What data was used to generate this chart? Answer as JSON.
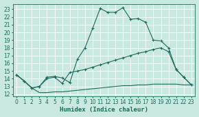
{
  "xlabel": "Humidex (Indice chaleur)",
  "bg_color": "#c8e8e0",
  "grid_color": "#b0d8d0",
  "line_color": "#1a6b5a",
  "xlim": [
    -0.5,
    23.5
  ],
  "ylim": [
    11.7,
    23.7
  ],
  "xticks": [
    0,
    1,
    2,
    3,
    4,
    5,
    6,
    7,
    8,
    9,
    10,
    11,
    12,
    13,
    14,
    15,
    16,
    17,
    18,
    19,
    20,
    21,
    22,
    23
  ],
  "yticks": [
    12,
    13,
    14,
    15,
    16,
    17,
    18,
    19,
    20,
    21,
    22,
    23
  ],
  "line1_x": [
    0,
    1,
    2,
    3,
    4,
    5,
    6,
    7,
    8,
    9,
    10,
    11,
    12,
    13,
    14,
    15,
    16,
    17,
    18,
    19,
    20,
    21,
    22,
    23
  ],
  "line1_y": [
    14.5,
    13.7,
    12.8,
    13.0,
    14.2,
    14.3,
    14.1,
    13.5,
    16.5,
    18.0,
    20.5,
    23.1,
    22.6,
    22.6,
    23.2,
    21.7,
    21.8,
    21.3,
    19.0,
    18.9,
    18.0,
    15.2,
    14.2,
    13.2
  ],
  "line2_x": [
    0,
    1,
    2,
    3,
    4,
    5,
    6,
    7,
    8,
    9,
    10,
    11,
    12,
    13,
    14,
    15,
    16,
    17,
    18,
    19,
    20,
    21,
    22,
    23
  ],
  "line2_y": [
    14.5,
    13.7,
    12.8,
    13.0,
    14.0,
    14.2,
    13.4,
    14.8,
    15.0,
    15.2,
    15.5,
    15.8,
    16.1,
    16.4,
    16.7,
    17.0,
    17.3,
    17.5,
    17.8,
    18.0,
    17.5,
    15.2,
    14.2,
    13.2
  ],
  "line3_x": [
    0,
    1,
    2,
    3,
    4,
    5,
    6,
    7,
    8,
    9,
    10,
    11,
    12,
    13,
    14,
    15,
    16,
    17,
    18,
    19,
    20,
    21,
    22,
    23
  ],
  "line3_y": [
    14.5,
    13.7,
    12.8,
    12.2,
    12.2,
    12.3,
    12.3,
    12.4,
    12.5,
    12.6,
    12.7,
    12.8,
    12.9,
    13.0,
    13.1,
    13.1,
    13.2,
    13.2,
    13.3,
    13.3,
    13.3,
    13.3,
    13.2,
    13.2
  ],
  "tick_fontsize": 5.5,
  "xlabel_fontsize": 6.5
}
